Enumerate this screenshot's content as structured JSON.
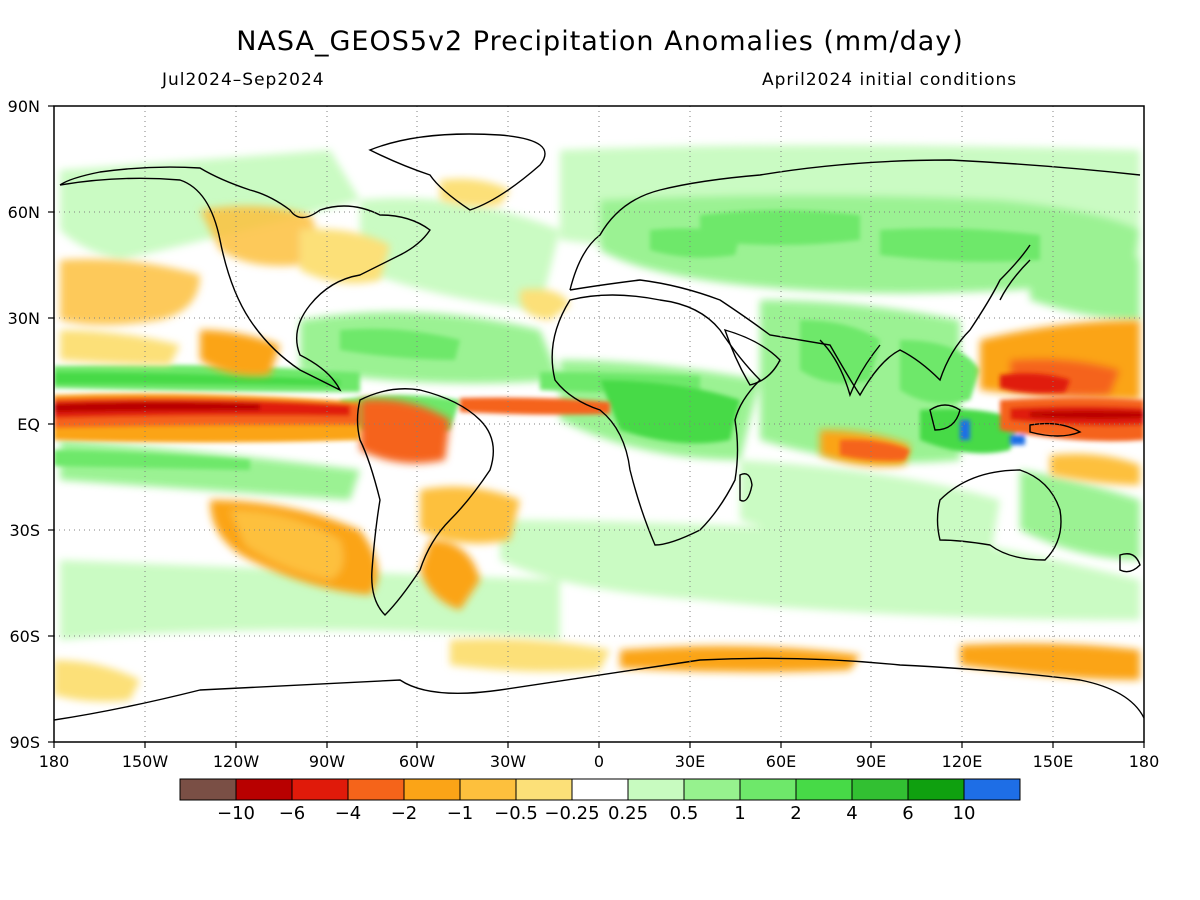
{
  "title": "NASA_GEOS5v2 Precipitation Anomalies (mm/day)",
  "subtitle_left": "Jul2024–Sep2024",
  "subtitle_right": "April2024 initial conditions",
  "axes": {
    "lat_labels": [
      "90N",
      "60N",
      "30N",
      "EQ",
      "30S",
      "60S",
      "90S"
    ],
    "lon_labels": [
      "180",
      "150W",
      "120W",
      "90W",
      "60W",
      "30W",
      "0",
      "30E",
      "60E",
      "90E",
      "120E",
      "150E",
      "180"
    ]
  },
  "colorbar": {
    "colors": [
      "#7a4f45",
      "#b80000",
      "#e01a0a",
      "#f5641a",
      "#fba417",
      "#fdc03d",
      "#fce078",
      "#ffffff",
      "#c8fbc0",
      "#96f28e",
      "#6ee86a",
      "#47da47",
      "#32c032",
      "#0fa00f",
      "#1e6ee6"
    ],
    "labels": [
      "−10",
      "−6",
      "−4",
      "−2",
      "−1",
      "−0.5",
      "−0.25",
      "0.25",
      "0.5",
      "1",
      "2",
      "4",
      "6",
      "10"
    ]
  },
  "legend_words": {
    "wettest": "blue",
    "driest": "dark brown"
  }
}
